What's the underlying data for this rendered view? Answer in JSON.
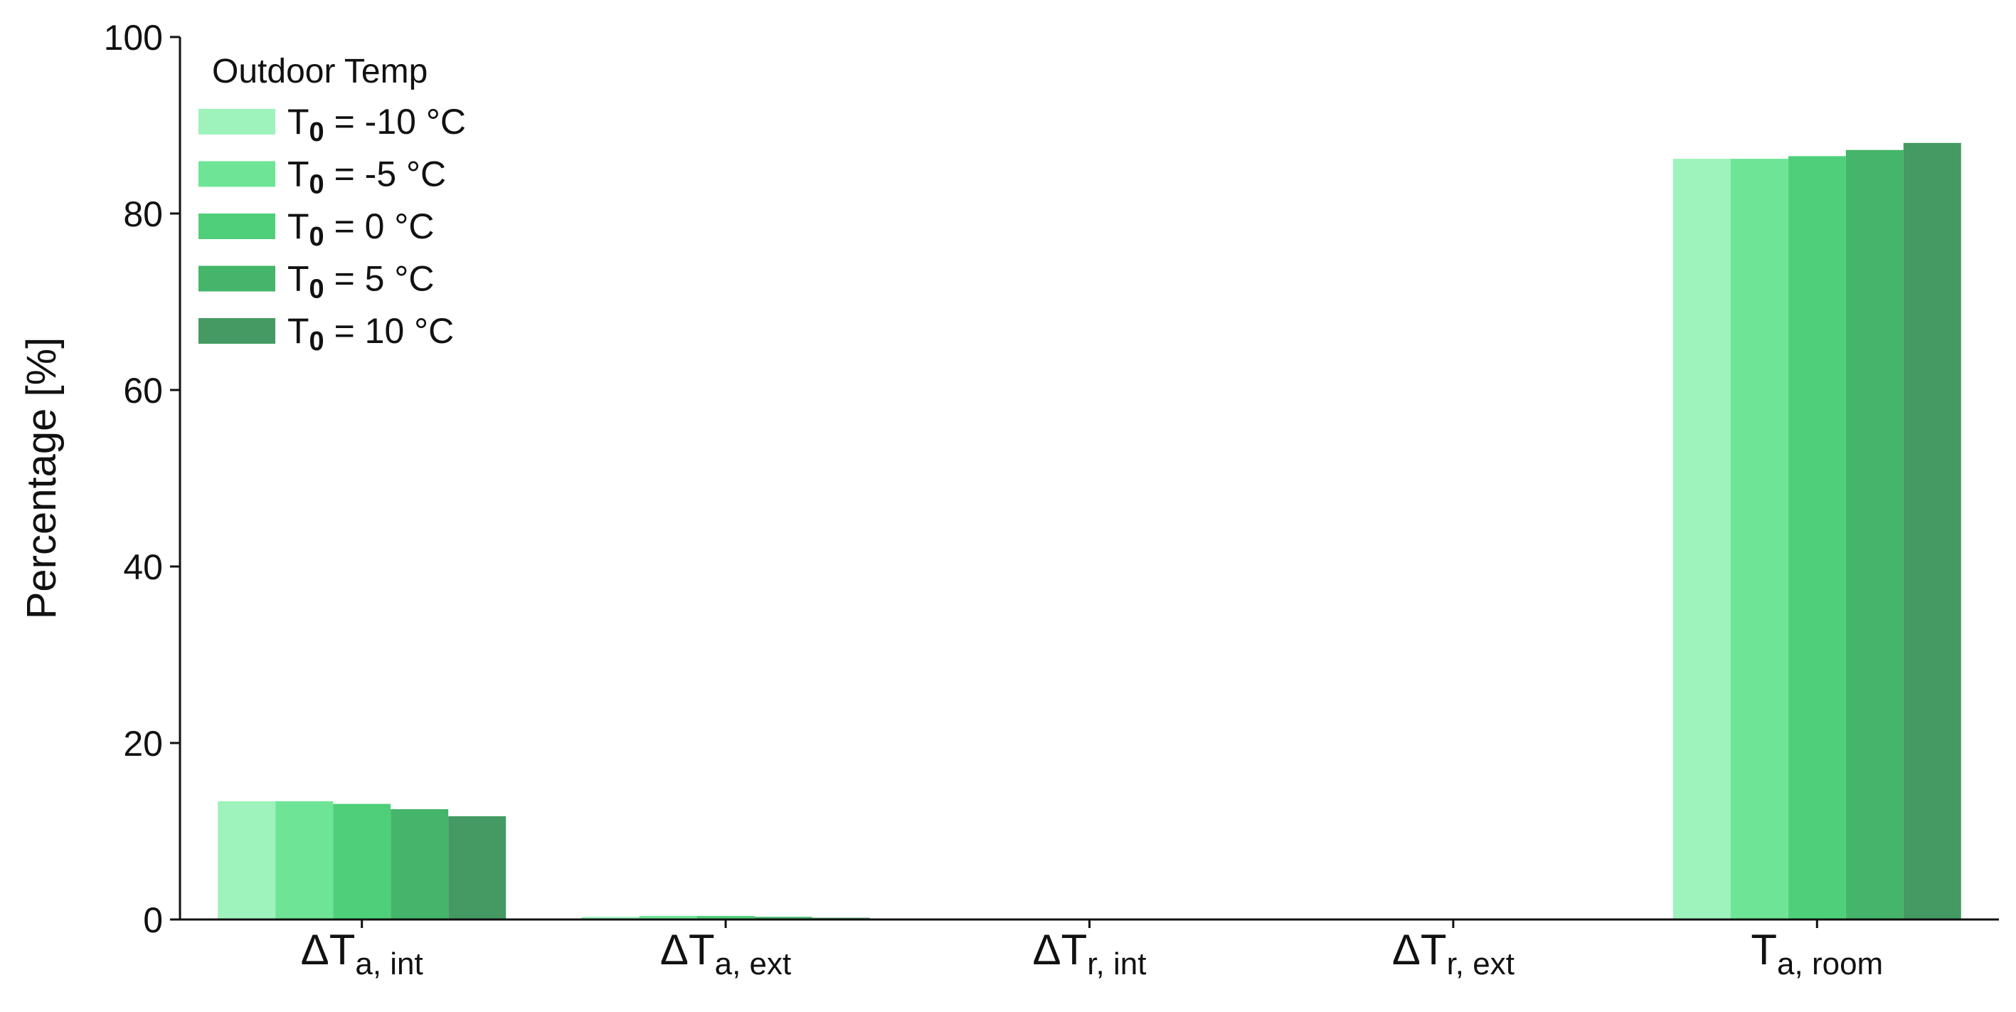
{
  "chart_data": {
    "type": "bar",
    "ylabel": "Percentage [%]",
    "ylim": [
      0,
      100
    ],
    "yticks": [
      "0",
      "20",
      "40",
      "60",
      "80",
      "100"
    ],
    "grid": false,
    "legend": {
      "title": "Outdoor Temp",
      "placement": "top-left"
    },
    "categories": [
      {
        "main": "ΔT",
        "sub": "a, int"
      },
      {
        "main": "ΔT",
        "sub": "a, ext"
      },
      {
        "main": "ΔT",
        "sub": "r, int"
      },
      {
        "main": "ΔT",
        "sub": "r, ext"
      },
      {
        "main": "T",
        "sub": "a, room"
      }
    ],
    "series": [
      {
        "name_main": "T",
        "name_sub": "0",
        "name_rest": " = -10 °C",
        "color": "#9ef2bb",
        "values": [
          13.4,
          0.3,
          0.0,
          0.0,
          86.2
        ]
      },
      {
        "name_main": "T",
        "name_sub": "0",
        "name_rest": " = -5 °C",
        "color": "#6ee596",
        "values": [
          13.4,
          0.4,
          0.0,
          0.0,
          86.2
        ]
      },
      {
        "name_main": "T",
        "name_sub": "0",
        "name_rest": " = 0 °C",
        "color": "#4fcf7a",
        "values": [
          13.1,
          0.4,
          0.0,
          0.0,
          86.5
        ]
      },
      {
        "name_main": "T",
        "name_sub": "0",
        "name_rest": " = 5 °C",
        "color": "#44b56a",
        "values": [
          12.5,
          0.3,
          0.0,
          0.0,
          87.2
        ]
      },
      {
        "name_main": "T",
        "name_sub": "0",
        "name_rest": " = 10 °C",
        "color": "#449a62",
        "values": [
          11.7,
          0.2,
          0.0,
          0.0,
          88.0
        ]
      }
    ]
  }
}
